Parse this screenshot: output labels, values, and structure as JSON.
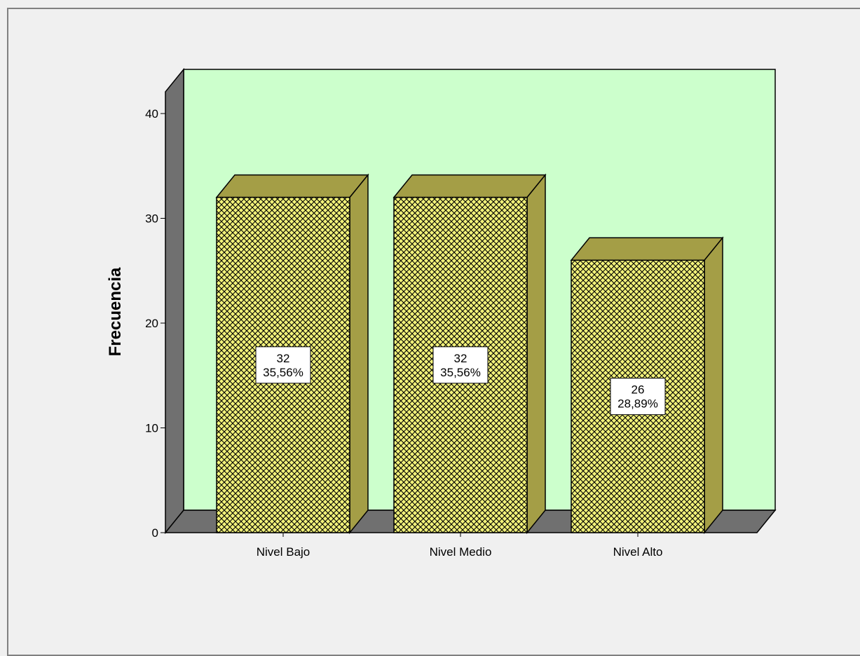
{
  "chart_data": {
    "type": "bar",
    "title": "",
    "xlabel": "",
    "ylabel": "Frecuencia",
    "categories": [
      "Nivel Bajo",
      "Nivel Medio",
      "Nivel Alto"
    ],
    "values": [
      32,
      32,
      26
    ],
    "percent_labels": [
      "35,56%",
      "35,56%",
      "28,89%"
    ],
    "ylim": [
      0,
      40
    ],
    "yticks": [
      "0",
      "10",
      "20",
      "30",
      "40"
    ],
    "grid": false,
    "legend": "none",
    "style": "3d",
    "colors": {
      "plot_background": "#ccffcc",
      "bar_front": "#f2f27a",
      "bar_hatch": "#000000",
      "bar_side": "#a49e46",
      "floor_wall": "#707070",
      "page_background": "#f0f0f0"
    }
  }
}
